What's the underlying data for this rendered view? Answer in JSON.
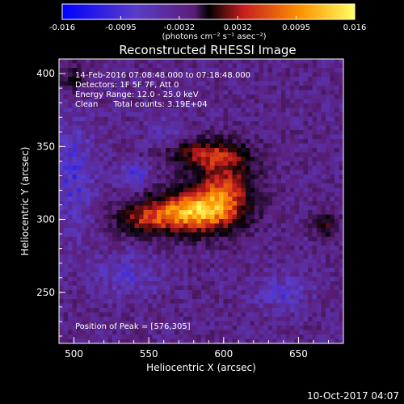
{
  "colorbar": {
    "ticks": [
      "-0.016",
      "-0.0095",
      "-0.0032",
      "0.0032",
      "0.0095",
      "0.016"
    ],
    "unit_label": "(photons cm⁻² s⁻¹ asec⁻²)"
  },
  "image": {
    "title": "Reconstructed RHESSI Image",
    "xlabel": "Heliocentric X (arcsec)",
    "ylabel": "Heliocentric Y (arcsec)",
    "x_ticks": [
      "500",
      "550",
      "600",
      "650"
    ],
    "y_ticks": [
      "250",
      "300",
      "350",
      "400"
    ],
    "xlim": [
      490,
      680
    ],
    "ylim": [
      215,
      410
    ],
    "annotations": {
      "time_range": "14-Feb-2016 07:08:48.000 to 07:18:48.000",
      "detectors": "Detectors: 1F 5F 7F, Att 0",
      "energy": "Energy Range: 12.0 - 25.0 keV",
      "clean": "Clean      Total counts: 3.19E+04",
      "peak": "Position of Peak = [576,305]"
    },
    "peak_position": [
      576,
      305
    ]
  },
  "footer": {
    "timestamp": "10-Oct-2017 04:07"
  },
  "colors": {
    "colormap_stops": [
      "#0000ff",
      "#5a3cc8",
      "#5a1e78",
      "#000000",
      "#c81e1e",
      "#ff9600",
      "#ffff64"
    ]
  }
}
